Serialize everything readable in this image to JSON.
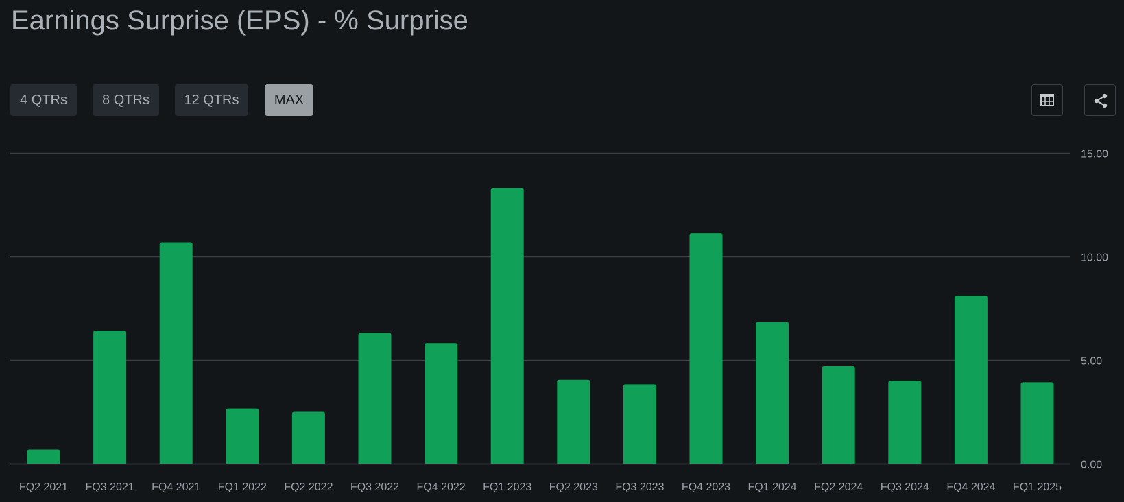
{
  "title": "Earnings Surprise (EPS) - % Surprise",
  "range_buttons": [
    {
      "label": "4 QTRs",
      "active": false
    },
    {
      "label": "8 QTRs",
      "active": false
    },
    {
      "label": "12 QTRs",
      "active": false
    },
    {
      "label": "MAX",
      "active": true
    }
  ],
  "icons": {
    "table": "table-icon",
    "share": "share-icon"
  },
  "colors": {
    "bar": "#10a058",
    "grid": "#3a3f44",
    "background": "#131619"
  },
  "chart_data": {
    "type": "bar",
    "categories": [
      "FQ2 2021",
      "FQ3 2021",
      "FQ4 2021",
      "FQ1 2022",
      "FQ2 2022",
      "FQ3 2022",
      "FQ4 2022",
      "FQ1 2023",
      "FQ2 2023",
      "FQ3 2023",
      "FQ4 2023",
      "FQ1 2024",
      "FQ2 2024",
      "FQ3 2024",
      "FQ4 2024",
      "FQ1 2025"
    ],
    "values": [
      0.68,
      6.42,
      10.68,
      2.66,
      2.5,
      6.31,
      5.82,
      13.31,
      4.05,
      3.83,
      11.12,
      6.83,
      4.7,
      4.0,
      8.11,
      3.93
    ],
    "title": "Earnings Surprise (EPS) - % Surprise",
    "xlabel": "",
    "ylabel": "",
    "ylim": [
      0,
      15
    ],
    "y_ticks": [
      "0.00",
      "5.00",
      "10.00",
      "15.00"
    ],
    "y_tick_values": [
      0,
      5,
      10,
      15
    ],
    "y_axis_position": "right",
    "grid": true
  }
}
